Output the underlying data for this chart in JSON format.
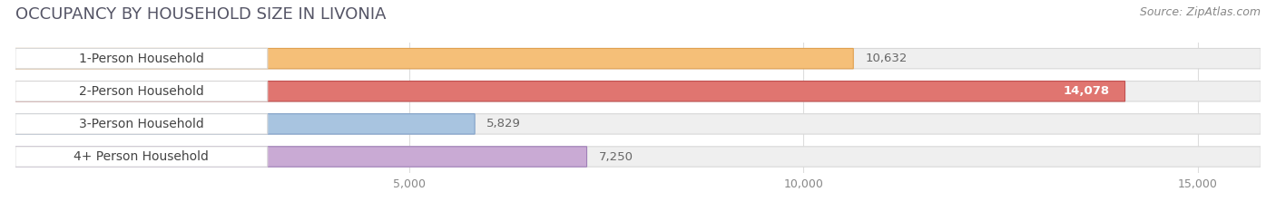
{
  "title": "OCCUPANCY BY HOUSEHOLD SIZE IN LIVONIA",
  "source": "Source: ZipAtlas.com",
  "categories": [
    "1-Person Household",
    "2-Person Household",
    "3-Person Household",
    "4+ Person Household"
  ],
  "values": [
    10632,
    14078,
    5829,
    7250
  ],
  "bar_colors": [
    "#f5bf78",
    "#e07570",
    "#a8c4e0",
    "#c9aad4"
  ],
  "bar_edge_colors": [
    "#e0a050",
    "#c05050",
    "#80a0c8",
    "#a080b8"
  ],
  "label_values": [
    "10,632",
    "14,078",
    "5,829",
    "7,250"
  ],
  "label_inside": [
    false,
    true,
    false,
    false
  ],
  "xlim": [
    0,
    15800
  ],
  "xticks": [
    5000,
    10000,
    15000
  ],
  "xtick_labels": [
    "5,000",
    "10,000",
    "15,000"
  ],
  "bar_height": 0.62,
  "background_color": "#ffffff",
  "bar_bg_color": "#efefef",
  "bar_bg_edge_color": "#d8d8d8",
  "title_fontsize": 13,
  "source_fontsize": 9,
  "label_fontsize": 9.5,
  "tick_fontsize": 9,
  "category_fontsize": 10,
  "title_color": "#555566",
  "source_color": "#888888",
  "label_color_outside": "#666666",
  "label_color_inside": "#ffffff",
  "category_color": "#444444",
  "grid_color": "#dddddd",
  "rounding_size": 0.28
}
